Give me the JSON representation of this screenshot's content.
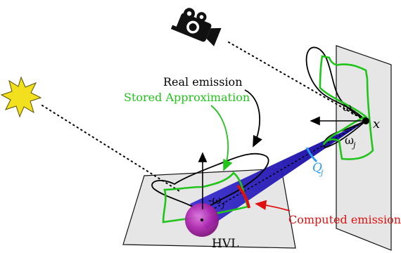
{
  "labels": {
    "real_emission": "Real emission",
    "stored_approximation": "Stored Approximation",
    "computed_emission": "Computed emission",
    "hvl": "HVL",
    "x": "x",
    "omega_o": "ω",
    "omega_o_sub": "o",
    "omega_j": "ω",
    "omega_j_sub": "j",
    "neg_omega_j": "-ω",
    "neg_omega_j_sub": "j",
    "q": "Q",
    "q_sub": "j"
  },
  "icons": {
    "light": "sun-burst-icon",
    "camera": "camera-icon"
  },
  "colors": {
    "real_emission": "#000000",
    "stored_approximation": "#21c41b",
    "computed_emission": "#e01010",
    "cone": "#3a2fd0",
    "q_arc": "#2a9bef",
    "hvl_sphere": "#b02ab0",
    "light": "#f2e01e",
    "plane_fill": "#e6e6e6"
  }
}
